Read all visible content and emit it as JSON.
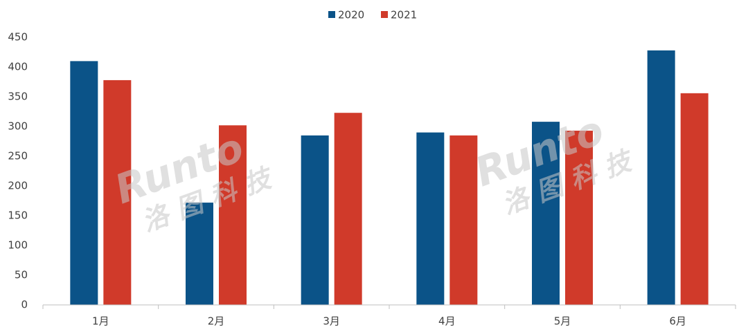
{
  "chart_data": {
    "type": "bar",
    "categories": [
      "1月",
      "2月",
      "3月",
      "4月",
      "5月",
      "6月"
    ],
    "series": [
      {
        "name": "2020",
        "color": "#0b5388",
        "values": [
          410,
          172,
          285,
          290,
          308,
          428
        ]
      },
      {
        "name": "2021",
        "color": "#d03a2a",
        "values": [
          378,
          302,
          323,
          285,
          293,
          356
        ]
      }
    ],
    "ylim": [
      0,
      450
    ],
    "yticks": [
      0,
      50,
      100,
      150,
      200,
      250,
      300,
      350,
      400,
      450
    ],
    "grid": false,
    "legend": "top",
    "watermark": [
      "Runto",
      "洛图科技"
    ]
  }
}
